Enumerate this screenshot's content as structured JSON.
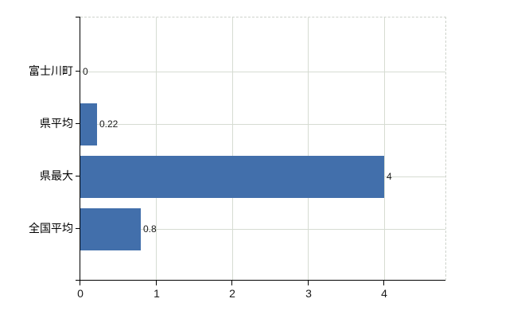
{
  "chart_data": {
    "type": "bar",
    "orientation": "horizontal",
    "title": "",
    "xlabel": "",
    "ylabel": "",
    "categories": [
      "富士川町",
      "県平均",
      "県最大",
      "全国平均"
    ],
    "values": [
      0,
      0.22,
      4,
      0.8
    ],
    "value_labels": [
      "0",
      "0.22",
      "4",
      "0.8"
    ],
    "xlim": [
      0,
      4.8
    ],
    "xticks": [
      0,
      1,
      2,
      3,
      4
    ],
    "xtick_labels": [
      "0",
      "1",
      "2",
      "3",
      "4"
    ],
    "grid": true,
    "legend": false,
    "bar_color": "#426fab",
    "grid_color": "#d6dcd2",
    "axis_color": "#000000",
    "text_color": "#1a1a1a",
    "background_color": "#ffffff"
  }
}
